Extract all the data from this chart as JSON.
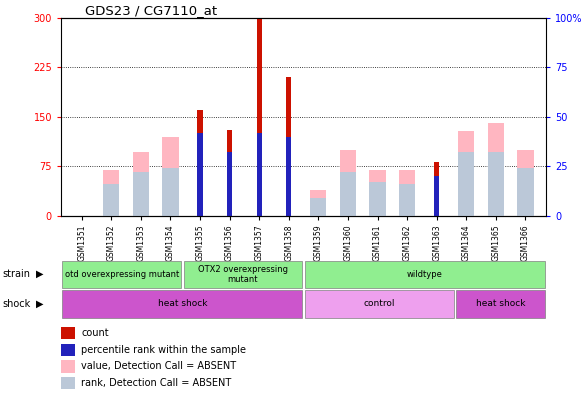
{
  "title": "GDS23 / CG7110_at",
  "samples": [
    "GSM1351",
    "GSM1352",
    "GSM1353",
    "GSM1354",
    "GSM1355",
    "GSM1356",
    "GSM1357",
    "GSM1358",
    "GSM1359",
    "GSM1360",
    "GSM1361",
    "GSM1362",
    "GSM1363",
    "GSM1364",
    "GSM1365",
    "GSM1366"
  ],
  "red_bars": [
    0,
    0,
    0,
    0,
    160,
    130,
    300,
    210,
    0,
    0,
    0,
    0,
    82,
    0,
    0,
    0
  ],
  "blue_bars_pct": [
    0,
    0,
    0,
    0,
    42,
    32,
    42,
    40,
    0,
    0,
    0,
    0,
    20,
    0,
    0,
    0
  ],
  "pink_bars_pct": [
    0,
    23,
    32,
    40,
    0,
    0,
    0,
    0,
    13,
    33,
    23,
    23,
    0,
    43,
    47,
    33
  ],
  "lblue_bars_pct": [
    0,
    16,
    22,
    24,
    0,
    0,
    0,
    0,
    9,
    22,
    17,
    16,
    0,
    32,
    32,
    24
  ],
  "ylim_left": [
    0,
    300
  ],
  "ylim_right": [
    0,
    100
  ],
  "yticks_left": [
    0,
    75,
    150,
    225,
    300
  ],
  "yticks_right": [
    0,
    25,
    50,
    75,
    100
  ],
  "red_color": "#CC1100",
  "blue_color": "#2222BB",
  "pink_color": "#FFB6C1",
  "lightblue_color": "#BBC8D8"
}
